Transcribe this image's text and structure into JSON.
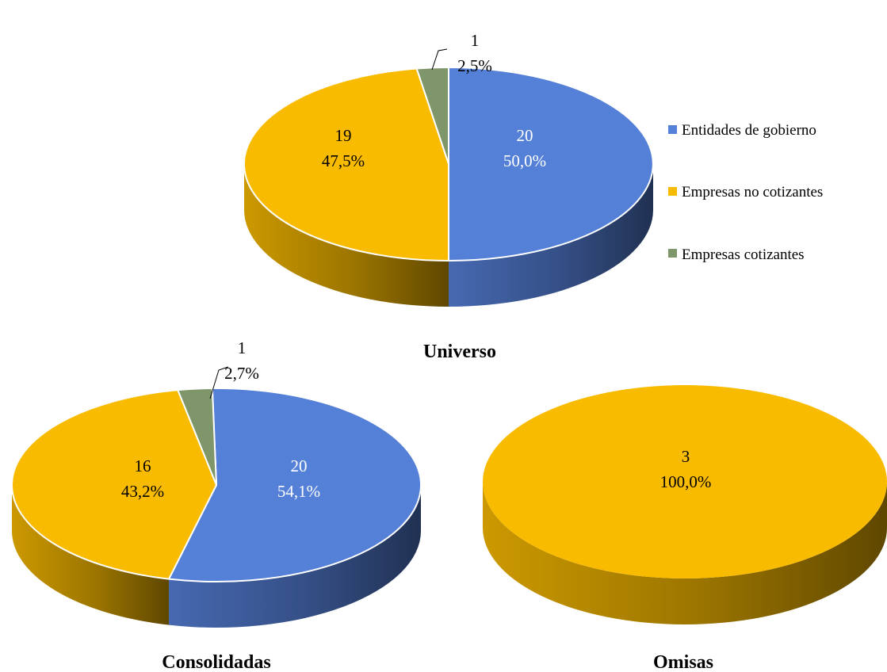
{
  "colors": {
    "gobierno": "#5580d8",
    "no_cotizantes": "#f9bb00",
    "cotizantes": "#7e9669"
  },
  "legend": [
    {
      "key": "gobierno",
      "label": "Entidades de gobierno"
    },
    {
      "key": "no_cotizantes",
      "label": "Empresas no cotizantes"
    },
    {
      "key": "cotizantes",
      "label": "Empresas cotizantes"
    }
  ],
  "chart_data": [
    {
      "type": "pie",
      "title": "Universo",
      "slices": [
        {
          "key": "gobierno",
          "label": "Entidades de gobierno",
          "value": 20,
          "percent": "50,0%"
        },
        {
          "key": "no_cotizantes",
          "label": "Empresas no cotizantes",
          "value": 19,
          "percent": "47,5%"
        },
        {
          "key": "cotizantes",
          "label": "Empresas cotizantes",
          "value": 1,
          "percent": "2,5%"
        }
      ]
    },
    {
      "type": "pie",
      "title": "Consolidadas",
      "slices": [
        {
          "key": "gobierno",
          "label": "Entidades de gobierno",
          "value": 20,
          "percent": "54,1%"
        },
        {
          "key": "no_cotizantes",
          "label": "Empresas no cotizantes",
          "value": 16,
          "percent": "43,2%"
        },
        {
          "key": "cotizantes",
          "label": "Empresas cotizantes",
          "value": 1,
          "percent": "2,7%"
        }
      ]
    },
    {
      "type": "pie",
      "title": "Omisas",
      "slices": [
        {
          "key": "no_cotizantes",
          "label": "Empresas no cotizantes",
          "value": 3,
          "percent": "100,0%"
        }
      ]
    }
  ]
}
